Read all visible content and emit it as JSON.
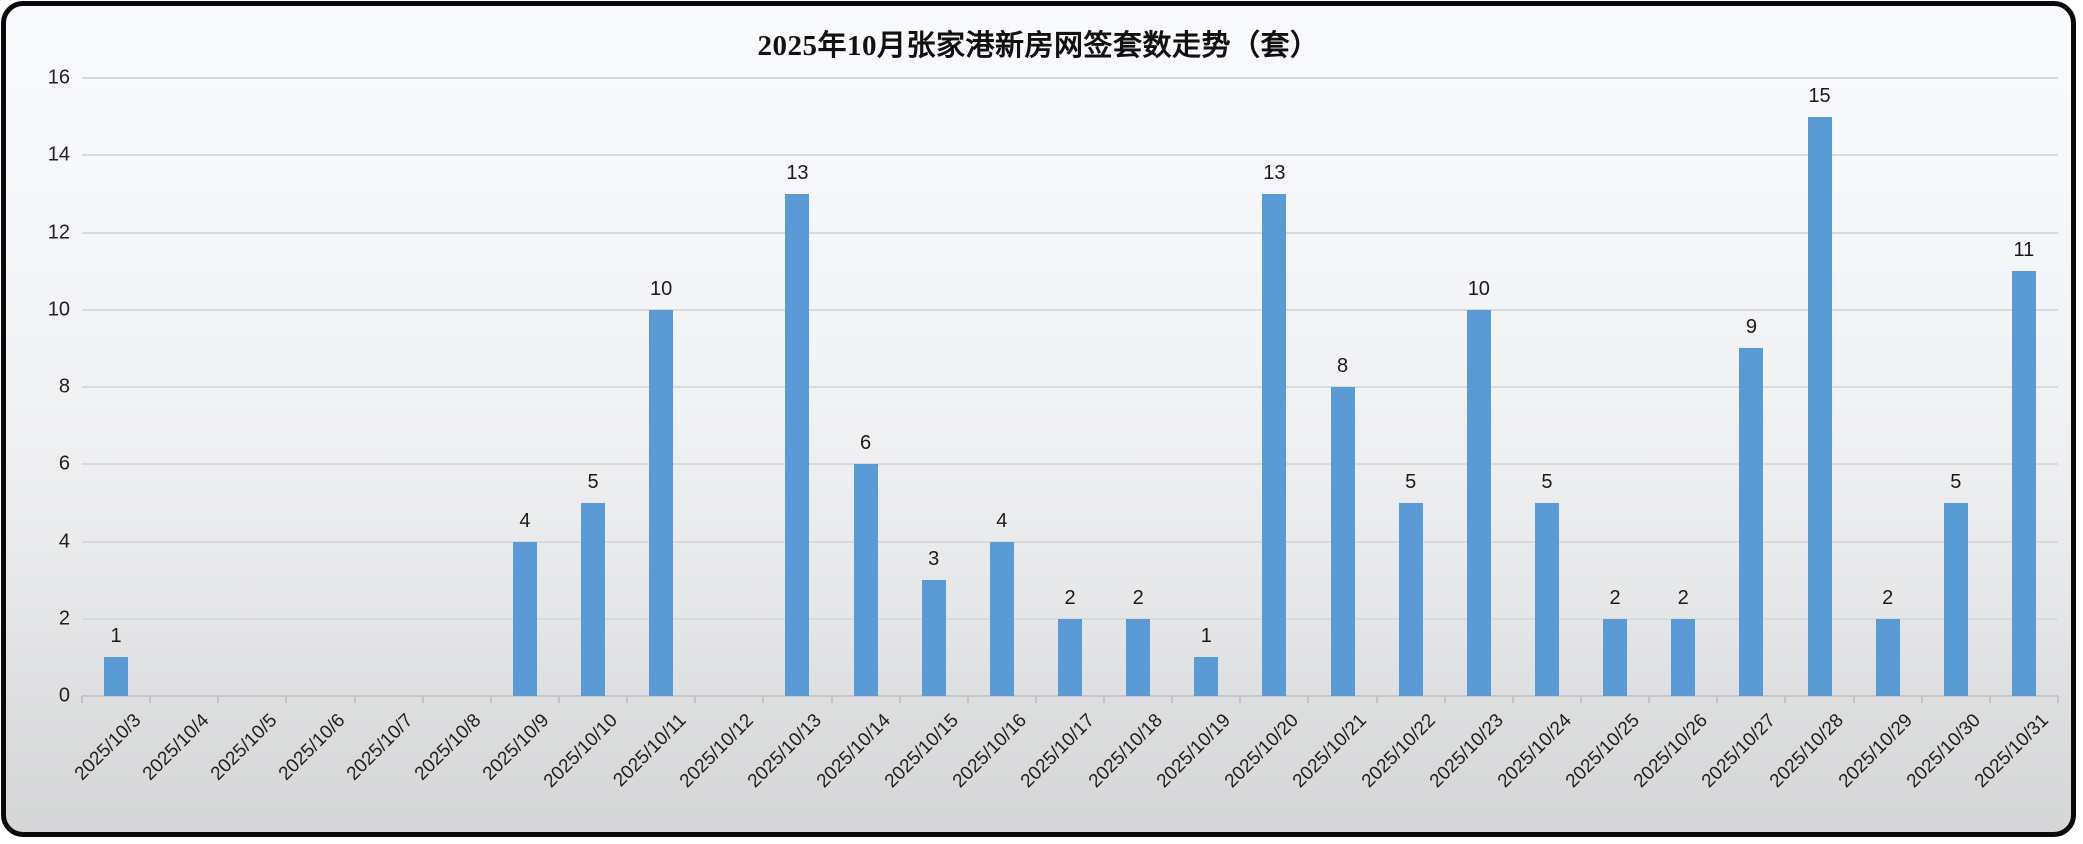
{
  "chart_data": {
    "type": "bar",
    "title": "2025年10月张家港新房网签套数走势（套）",
    "categories": [
      "2025/10/3",
      "2025/10/4",
      "2025/10/5",
      "2025/10/6",
      "2025/10/7",
      "2025/10/8",
      "2025/10/9",
      "2025/10/10",
      "2025/10/11",
      "2025/10/12",
      "2025/10/13",
      "2025/10/14",
      "2025/10/15",
      "2025/10/16",
      "2025/10/17",
      "2025/10/18",
      "2025/10/19",
      "2025/10/20",
      "2025/10/21",
      "2025/10/22",
      "2025/10/23",
      "2025/10/24",
      "2025/10/25",
      "2025/10/26",
      "2025/10/27",
      "2025/10/28",
      "2025/10/29",
      "2025/10/30",
      "2025/10/31"
    ],
    "values": [
      1,
      0,
      0,
      0,
      0,
      0,
      4,
      5,
      10,
      0,
      13,
      6,
      3,
      4,
      2,
      2,
      1,
      13,
      8,
      5,
      10,
      5,
      2,
      2,
      9,
      15,
      2,
      5,
      11
    ],
    "xlabel": "",
    "ylabel": "",
    "ylim": [
      0,
      16
    ],
    "yticks": [
      0,
      2,
      4,
      6,
      8,
      10,
      12,
      14,
      16
    ],
    "grid": true,
    "legend": false,
    "data_labels": true,
    "data_labels_hide_zero": true,
    "bar_color": "#5b9bd5",
    "gridline_color": "#d8dadc",
    "axis_line_color": "#c4c6c8",
    "label_color": "#1f1f1f",
    "background_top": "#f8fafd",
    "background_bottom": "#d5d6d7",
    "x_label_rotation_deg": -45
  }
}
